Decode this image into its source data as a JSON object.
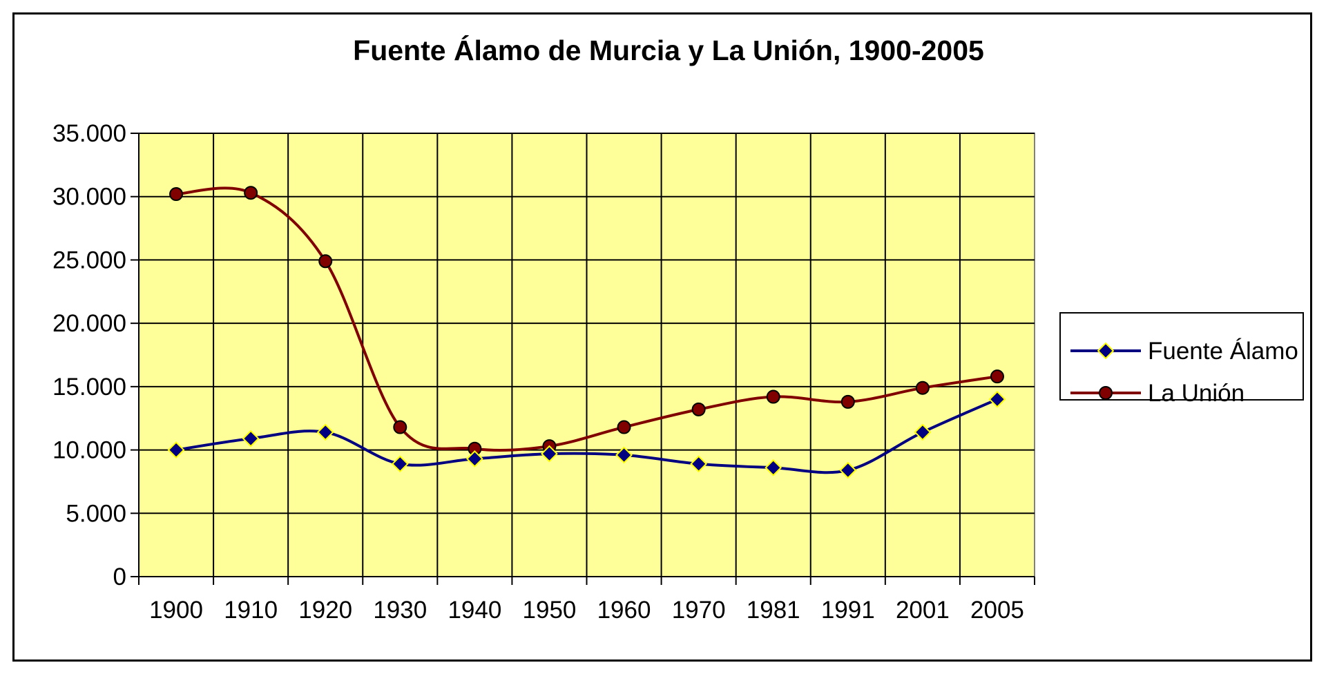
{
  "chart_data": {
    "type": "line",
    "title": "Fuente Álamo de Murcia y La Unión, 1900-2005",
    "xlabel": "",
    "ylabel": "",
    "categories": [
      "1900",
      "1910",
      "1920",
      "1930",
      "1940",
      "1950",
      "1960",
      "1970",
      "1981",
      "1991",
      "2001",
      "2005"
    ],
    "y_ticks": [
      "0",
      "5.000",
      "10.000",
      "15.000",
      "20.000",
      "25.000",
      "30.000",
      "35.000"
    ],
    "ylim": [
      0,
      35000
    ],
    "grid": true,
    "smooth": true,
    "legend_position": "right",
    "plot_background": "#FFFF99",
    "series": [
      {
        "name": "Fuente Álamo",
        "color": "#000080",
        "marker": "diamond",
        "values": [
          10000,
          10900,
          11400,
          8900,
          9300,
          9700,
          9600,
          8900,
          8600,
          8400,
          11400,
          14000
        ]
      },
      {
        "name": "La Unión",
        "color": "#800000",
        "marker": "circle",
        "values": [
          30200,
          30300,
          24900,
          11800,
          10100,
          10300,
          11800,
          13200,
          14200,
          13800,
          14900,
          15800
        ]
      }
    ]
  }
}
